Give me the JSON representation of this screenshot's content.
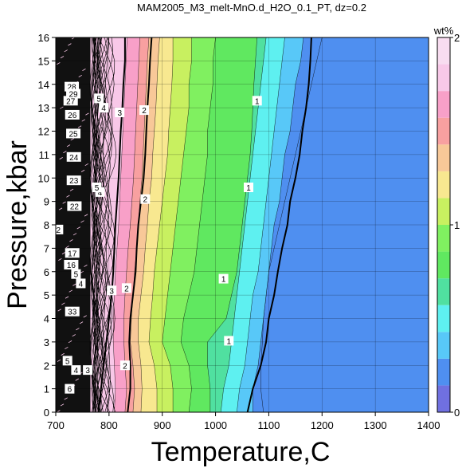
{
  "chart_data": {
    "type": "heatmap",
    "title": "MAM2005_M3_melt-MnO.d_H2O_0.1_PT, dz=0.2",
    "xlabel": "Temperature,C",
    "ylabel": "Pressure,kbar",
    "xlim": [
      700,
      1400
    ],
    "ylim": [
      0,
      16
    ],
    "x_ticks": [
      "700",
      "800",
      "900",
      "1000",
      "1100",
      "1200",
      "1300",
      "1400"
    ],
    "y_ticks": [
      "0",
      "1",
      "2",
      "3",
      "4",
      "5",
      "6",
      "7",
      "8",
      "9",
      "10",
      "11",
      "12",
      "13",
      "14",
      "15",
      "16"
    ],
    "grid": true,
    "colorbar": {
      "label": "wt%",
      "ticks": [
        "0",
        "1",
        "2"
      ],
      "range": [
        0,
        2
      ],
      "colors": [
        "#7070e0",
        "#4f8ff0",
        "#58c8f8",
        "#5ef0f0",
        "#50e0a0",
        "#60e860",
        "#80f060",
        "#c8f060",
        "#f8e890",
        "#f8c898",
        "#f8a0a0",
        "#f8a0c8",
        "#f8c8e8",
        "#f8dcf0"
      ]
    },
    "bands": [
      {
        "value": 0.2,
        "color": "#4f8ff0",
        "boundary_x": [
          1090,
          1085,
          1085,
          1088,
          1090,
          1095,
          1100,
          1110,
          1120,
          1130,
          1140,
          1150,
          1160,
          1170,
          1180,
          1190,
          1200
        ]
      },
      {
        "value": 0.4,
        "color": "#58c8f8",
        "boundary_x": [
          1070,
          1070,
          1080,
          1085,
          1090,
          1095,
          1100,
          1105,
          1110,
          1120,
          1125,
          1130,
          1140,
          1145,
          1150,
          1160,
          1165
        ]
      },
      {
        "value": 0.6,
        "color": "#5ef0f0",
        "boundary_x": [
          1040,
          1045,
          1055,
          1060,
          1065,
          1070,
          1080,
          1085,
          1090,
          1095,
          1100,
          1105,
          1110,
          1115,
          1120,
          1125,
          1130
        ]
      },
      {
        "value": 0.8,
        "color": "#50e0a0",
        "boundary_x": [
          1010,
          1015,
          1025,
          1030,
          1035,
          1040,
          1045,
          1050,
          1055,
          1060,
          1065,
          1070,
          1075,
          1080,
          1085,
          1090,
          1095
        ]
      },
      {
        "value": 1.0,
        "color": "#60e860",
        "boundary_x": [
          990,
          990,
          985,
          985,
          1020,
          1030,
          1040,
          1045,
          1050,
          1055,
          1060,
          1065,
          1068,
          1070,
          1072,
          1075,
          1078
        ]
      },
      {
        "value": 1.2,
        "color": "#80f060",
        "boundary_x": [
          950,
          955,
          950,
          935,
          940,
          950,
          960,
          965,
          970,
          975,
          980,
          985,
          985,
          990,
          995,
          995,
          1000
        ]
      },
      {
        "value": 1.4,
        "color": "#c8f060",
        "boundary_x": [
          920,
          920,
          915,
          900,
          905,
          910,
          915,
          920,
          925,
          930,
          935,
          940,
          945,
          950,
          950,
          955,
          955
        ]
      },
      {
        "value": 1.6,
        "color": "#f8e890",
        "boundary_x": [
          890,
          890,
          885,
          875,
          878,
          882,
          885,
          890,
          895,
          900,
          905,
          910,
          912,
          915,
          918,
          920,
          920
        ]
      },
      {
        "value": 1.8,
        "color": "#f8c898",
        "boundary_x": [
          860,
          862,
          860,
          855,
          855,
          860,
          865,
          868,
          872,
          875,
          880,
          882,
          885,
          888,
          890,
          892,
          895
        ]
      },
      {
        "value": 2.0,
        "color": "#f8a0a0",
        "boundary_x": [
          845,
          848,
          845,
          840,
          842,
          845,
          848,
          852,
          855,
          858,
          862,
          864,
          866,
          868,
          870,
          872,
          875
        ]
      },
      {
        "value": 2.2,
        "color": "#f8a0c8",
        "boundary_x": [
          830,
          833,
          830,
          828,
          828,
          830,
          833,
          836,
          840,
          843,
          846,
          848,
          850,
          852,
          854,
          856,
          858
        ]
      },
      {
        "value": 2.4,
        "color": "#f8c8e8",
        "boundary_x": [
          810,
          812,
          810,
          808,
          808,
          810,
          812,
          815,
          818,
          820,
          822,
          824,
          826,
          828,
          830,
          832,
          834
        ]
      }
    ],
    "contours": [
      {
        "label": "1",
        "x": [
          1060,
          1070,
          1085,
          1095,
          1100,
          1110,
          1117,
          1125,
          1135,
          1140,
          1150,
          1158,
          1163,
          1170,
          1175,
          1178,
          1180
        ],
        "y": [
          0,
          1,
          2,
          3,
          4,
          5,
          6,
          7,
          8,
          9,
          10,
          11,
          12,
          13,
          14,
          15,
          16
        ]
      },
      {
        "label": "2",
        "x": [
          835,
          840,
          840,
          838,
          840,
          845,
          850,
          852,
          855,
          860,
          865,
          868,
          870,
          872,
          875,
          877,
          880
        ],
        "y": [
          0,
          1,
          2,
          3,
          4,
          5,
          6,
          7,
          8,
          9,
          10,
          11,
          12,
          13,
          14,
          15,
          16
        ]
      },
      {
        "label": "3",
        "x": [
          780,
          785,
          790,
          795,
          800,
          805,
          808,
          810,
          812,
          815,
          818,
          820,
          822,
          825,
          827,
          830,
          830
        ],
        "y": [
          0,
          1,
          2,
          3,
          4,
          5,
          6,
          7,
          8,
          9,
          10,
          11,
          12,
          13,
          14,
          15,
          16
        ]
      }
    ],
    "contour_labels": [
      {
        "text": "1",
        "x": 1025,
        "y": 3.05
      },
      {
        "text": "1",
        "x": 1015,
        "y": 5.7
      },
      {
        "text": "1",
        "x": 1062,
        "y": 9.6
      },
      {
        "text": "1",
        "x": 1078,
        "y": 13.3
      },
      {
        "text": "2",
        "x": 830,
        "y": 2.0
      },
      {
        "text": "2",
        "x": 833,
        "y": 5.3
      },
      {
        "text": "2",
        "x": 868,
        "y": 9.1
      },
      {
        "text": "2",
        "x": 866,
        "y": 12.9
      },
      {
        "text": "3",
        "x": 805,
        "y": 5.2
      },
      {
        "text": "3",
        "x": 820,
        "y": 12.8
      },
      {
        "text": "3",
        "x": 760,
        "y": 1.8
      },
      {
        "text": "4",
        "x": 738,
        "y": 1.8
      },
      {
        "text": "5",
        "x": 722,
        "y": 2.2
      },
      {
        "text": "6",
        "x": 726,
        "y": 1.0
      },
      {
        "text": "4",
        "x": 747,
        "y": 5.5
      },
      {
        "text": "5",
        "x": 738,
        "y": 5.9
      },
      {
        "text": "4",
        "x": 790,
        "y": 13.0
      },
      {
        "text": "5",
        "x": 781,
        "y": 13.4
      },
      {
        "text": "4",
        "x": 783,
        "y": 9.4
      },
      {
        "text": "5",
        "x": 777,
        "y": 9.6
      },
      {
        "text": "17",
        "x": 731,
        "y": 6.8
      },
      {
        "text": "16",
        "x": 729,
        "y": 6.3
      },
      {
        "text": "22",
        "x": 735,
        "y": 8.8
      },
      {
        "text": "23",
        "x": 734,
        "y": 9.9
      },
      {
        "text": "24",
        "x": 734,
        "y": 10.9
      },
      {
        "text": "25",
        "x": 733,
        "y": 11.9
      },
      {
        "text": "26",
        "x": 731,
        "y": 12.7
      },
      {
        "text": "27",
        "x": 728,
        "y": 13.3
      },
      {
        "text": "28",
        "x": 730,
        "y": 13.9
      },
      {
        "text": "29",
        "x": 733,
        "y": 13.6
      },
      {
        "text": "2",
        "x": 705,
        "y": 7.8
      },
      {
        "text": "33",
        "x": 731,
        "y": 4.3
      }
    ]
  }
}
